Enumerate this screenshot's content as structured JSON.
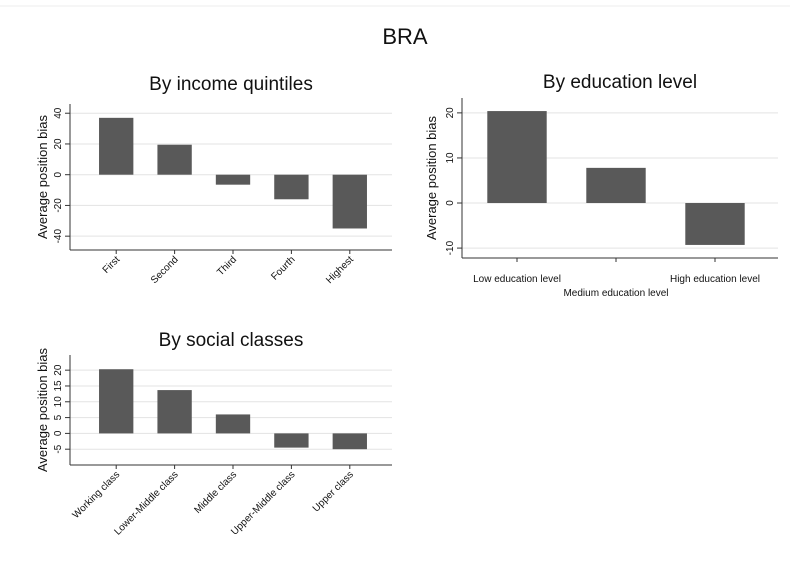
{
  "title": "BRA",
  "chart_data": [
    {
      "type": "bar",
      "title": "By income quintiles",
      "y_label": "Average position bias",
      "categories": [
        "First",
        "Second",
        "Third",
        "Fourth",
        "Highest"
      ],
      "values": [
        37,
        19.5,
        -6.5,
        -16,
        -35
      ],
      "color": "#595959",
      "ylim": [
        -49,
        46
      ],
      "yticks": [
        -40,
        -20,
        0,
        20,
        40
      ],
      "grid": true
    },
    {
      "type": "bar",
      "title": "By education level",
      "y_label": "Average position bias",
      "categories": [
        "Low education level",
        "Medium education level",
        "High education level"
      ],
      "values": [
        20.4,
        7.8,
        -9.3
      ],
      "color": "#595959",
      "ylim": [
        -12.2,
        23.3
      ],
      "yticks": [
        -10,
        0,
        10,
        20
      ],
      "grid": true
    },
    {
      "type": "bar",
      "title": "By social classes",
      "y_label": "Average position bias",
      "categories": [
        "Working class",
        "Lower-Middle class",
        "Middle class",
        "Upper-Middle class",
        "Upper class"
      ],
      "values": [
        20.3,
        13.7,
        6,
        -4.5,
        -5
      ],
      "color": "#595959",
      "ylim": [
        -10,
        24.8
      ],
      "yticks": [
        -5,
        0,
        5,
        10,
        15,
        20
      ],
      "grid": true
    }
  ]
}
